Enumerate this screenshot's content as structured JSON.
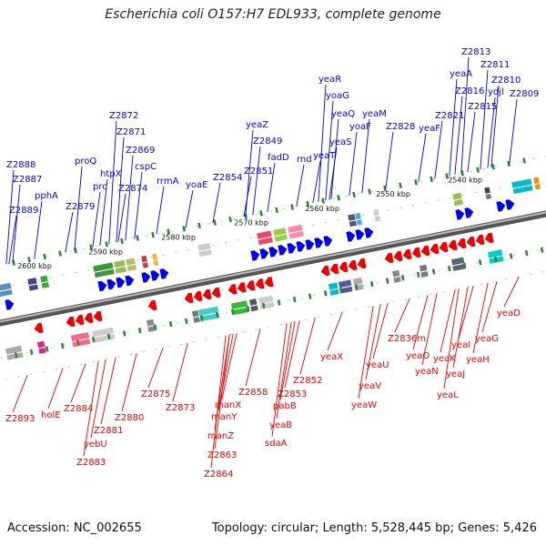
{
  "title": "Escherichia coli O157:H7 EDL933, complete genome",
  "footer": {
    "accession": "Accession: NC_002655",
    "summary": "Topology: circular; Length: 5,528,445 bp; Genes: 5,426"
  },
  "colors": {
    "forward": "#0000ee",
    "reverse": "#ee0000",
    "backbone": "#888888",
    "tick": "#2a8a2a"
  },
  "position_labels": [
    "2600 kbp",
    "2590 kbp",
    "2580 kbp",
    "2570 kbp",
    "2560 kbp",
    "2550 kbp",
    "2540 kbp"
  ],
  "top_genes": [
    "Z2888",
    "Z2887",
    "Z2889",
    "pphA",
    "proQ",
    "Z2879",
    "prc",
    "htpX",
    "Z2872",
    "Z2871",
    "Z2869",
    "Z2874",
    "cspC",
    "rrmA",
    "yoaE",
    "Z2854",
    "yeaZ",
    "Z2849",
    "Z2851",
    "fadD",
    "rnd",
    "yeaT",
    "yeaR",
    "yoaG",
    "yeaQ",
    "yeaS",
    "yoaF",
    "yeaM",
    "Z2828",
    "yeaF",
    "Z2821",
    "yeaA",
    "Z2813",
    "Z2816",
    "Z2815",
    "ydjl",
    "Z2811",
    "Z2810",
    "Z2809"
  ],
  "bottom_genes": [
    "Z2893",
    "holE",
    "Z2884",
    "yebU",
    "Z2883",
    "Z2881",
    "Z2880",
    "Z2875",
    "Z2873",
    "manX",
    "manY",
    "manZ",
    "Z2863",
    "Z2864",
    "Z2858",
    "Z2853",
    "pabB",
    "yeaB",
    "sdaA",
    "Z2852",
    "yeaX",
    "yeaW",
    "yeaV",
    "yeaU",
    "Z2836m",
    "yeaO",
    "yeaN",
    "yeaK",
    "yeaJ",
    "yeaL",
    "yeaI",
    "yeaH",
    "yeaG",
    "yeaD"
  ]
}
